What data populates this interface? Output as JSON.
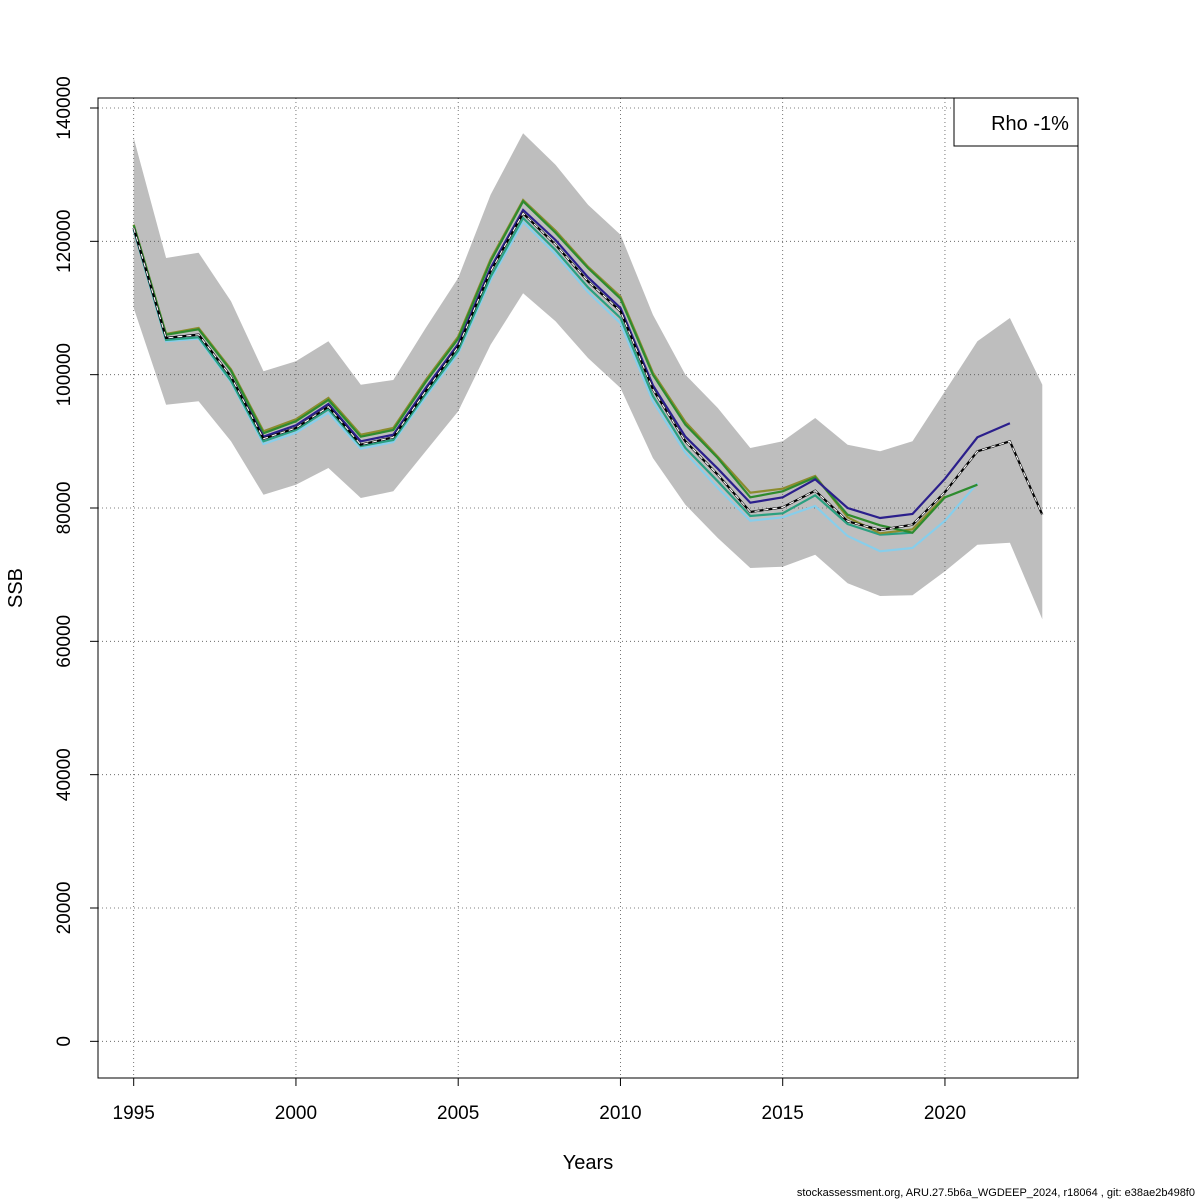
{
  "chart_data": {
    "type": "line",
    "xlabel": "Years",
    "ylabel": "SSB",
    "xlim": [
      1993.9,
      2024.1
    ],
    "ylim": [
      -5500,
      141500
    ],
    "xticks": [
      1995,
      2000,
      2005,
      2010,
      2015,
      2020
    ],
    "yticks": [
      0,
      20000,
      40000,
      60000,
      80000,
      100000,
      120000,
      140000
    ],
    "grid": true,
    "legend": {
      "position": "top-right",
      "text": "Rho -1%"
    },
    "band": {
      "x": [
        1995,
        1996,
        1997,
        1998,
        1999,
        2000,
        2001,
        2002,
        2003,
        2004,
        2005,
        2006,
        2007,
        2008,
        2009,
        2010,
        2011,
        2012,
        2013,
        2014,
        2015,
        2016,
        2017,
        2018,
        2019,
        2020,
        2021,
        2022,
        2023
      ],
      "upper": [
        135500,
        117500,
        118300,
        111000,
        100500,
        102000,
        105000,
        98500,
        99200,
        107000,
        114500,
        127000,
        136200,
        131500,
        125500,
        121000,
        109000,
        100000,
        95000,
        89000,
        90000,
        93500,
        89500,
        88500,
        90000,
        97500,
        105000,
        108500,
        98500
      ],
      "lower": [
        110000,
        95500,
        96000,
        90000,
        82000,
        83500,
        86000,
        81500,
        82500,
        88500,
        94500,
        104500,
        112200,
        108000,
        102500,
        98000,
        87500,
        80500,
        75500,
        71000,
        71200,
        73000,
        68700,
        66800,
        66900,
        70500,
        74500,
        74800,
        63300
      ]
    },
    "series": [
      {
        "x": [
          1995,
          1996,
          1997,
          1998,
          1999,
          2000,
          2001,
          2002,
          2003,
          2004,
          2005,
          2006,
          2007,
          2008,
          2009,
          2010,
          2011,
          2012,
          2013,
          2014,
          2015,
          2016,
          2017,
          2018,
          2019,
          2020,
          2021,
          2022,
          2023
        ],
        "values": [
          122000,
          105500,
          106000,
          99700,
          90400,
          92000,
          95200,
          89500,
          90600,
          97500,
          104200,
          115500,
          124200,
          119500,
          114000,
          109500,
          97800,
          90000,
          85000,
          79400,
          80100,
          82600,
          78000,
          76700,
          77500,
          82400,
          88500,
          90000,
          79000
        ],
        "color": "#000000",
        "dashed": true
      },
      {
        "x": [
          1995,
          1996,
          1997,
          1998,
          1999,
          2000,
          2001,
          2002,
          2003,
          2004,
          2005,
          2006,
          2007,
          2008,
          2009,
          2010,
          2011,
          2012,
          2013,
          2014,
          2015,
          2016,
          2017,
          2018,
          2019,
          2020,
          2021,
          2022
        ],
        "values": [
          122000,
          105500,
          106000,
          99700,
          90700,
          92400,
          95600,
          90000,
          91000,
          98000,
          104600,
          116000,
          124700,
          120200,
          114600,
          110000,
          98400,
          90700,
          85900,
          80800,
          81600,
          84300,
          80000,
          78500,
          79100,
          84400,
          90600,
          92700
        ],
        "color": "#2b1f8c"
      },
      {
        "x": [
          1995,
          1996,
          1997,
          1998,
          1999,
          2000,
          2001,
          2002,
          2003,
          2004,
          2005,
          2006,
          2007,
          2008,
          2009,
          2010,
          2011,
          2012,
          2013,
          2014,
          2015,
          2016,
          2017,
          2018,
          2019,
          2020,
          2021
        ],
        "values": [
          122400,
          106000,
          106800,
          100600,
          91200,
          93000,
          96200,
          90700,
          91700,
          98900,
          105400,
          117000,
          126000,
          121300,
          116000,
          111400,
          100000,
          92500,
          87500,
          81600,
          82500,
          84600,
          79000,
          77400,
          76300,
          81600,
          83500
        ],
        "color": "#2e8b2e"
      },
      {
        "x": [
          1995,
          1996,
          1997,
          1998,
          1999,
          2000,
          2001,
          2002,
          2003,
          2004,
          2005,
          2006,
          2007,
          2008,
          2009,
          2010,
          2011,
          2012,
          2013,
          2014,
          2015,
          2016,
          2017,
          2018,
          2019,
          2020
        ],
        "values": [
          122500,
          106100,
          107000,
          100800,
          91500,
          93300,
          96500,
          91000,
          92000,
          99200,
          105700,
          117300,
          126200,
          121600,
          116200,
          111700,
          100300,
          92900,
          87700,
          82300,
          82900,
          84800,
          78600,
          76200,
          76800,
          81800
        ],
        "color": "#8c8c2e"
      },
      {
        "x": [
          1995,
          1996,
          1997,
          1998,
          1999,
          2000,
          2001,
          2002,
          2003,
          2004,
          2005,
          2006,
          2007,
          2008,
          2009,
          2010,
          2011,
          2012,
          2013,
          2014,
          2015,
          2016,
          2017,
          2018,
          2019
        ],
        "values": [
          121800,
          105200,
          105600,
          99100,
          90000,
          91700,
          94800,
          89300,
          90200,
          97100,
          103600,
          114700,
          123500,
          118700,
          113100,
          108500,
          96800,
          89000,
          84000,
          78800,
          79200,
          81900,
          77600,
          76000,
          76300
        ],
        "color": "#2aa080"
      },
      {
        "x": [
          1995,
          1996,
          1997,
          1998,
          1999,
          2000,
          2001,
          2002,
          2003,
          2004,
          2005,
          2006,
          2007,
          2008,
          2009,
          2010,
          2011,
          2012,
          2013,
          2014,
          2015,
          2016,
          2017,
          2018,
          2019,
          2020,
          2021
        ],
        "values": [
          121700,
          105000,
          105400,
          98900,
          89600,
          91300,
          94300,
          88900,
          89900,
          96700,
          103200,
          114200,
          122900,
          118100,
          112400,
          107700,
          96000,
          88300,
          83000,
          78100,
          78600,
          80300,
          75800,
          73500,
          74000,
          78100,
          83700
        ],
        "color": "#87ceeb"
      }
    ],
    "footer": "stockassessment.org, ARU.27.5b6a_WGDEEP_2024, r18064 , git: e38ae2b498f0"
  }
}
